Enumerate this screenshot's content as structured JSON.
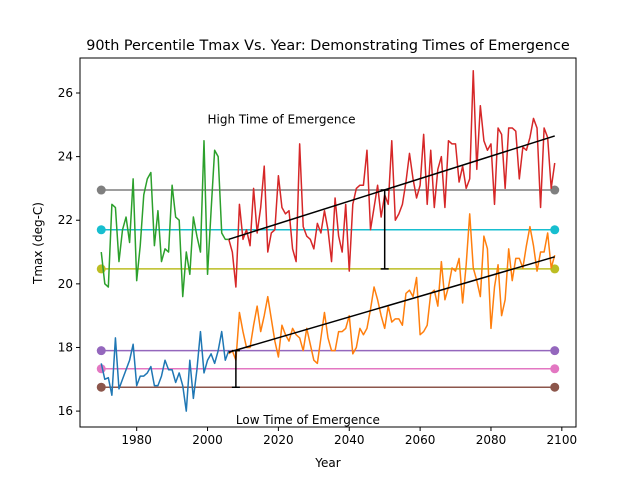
{
  "chart_data": {
    "type": "line",
    "title": "90th Percentile Tmax Vs. Year: Demonstrating Times of Emergence",
    "xlabel": "Year",
    "ylabel": "Tmax (deg-C)",
    "xlim": [
      1964,
      2104
    ],
    "ylim": [
      15.5,
      27.1
    ],
    "xticks": [
      1980,
      2000,
      2020,
      2040,
      2060,
      2080,
      2100
    ],
    "yticks": [
      16,
      18,
      20,
      22,
      24,
      26
    ],
    "grid": false,
    "annotations": [
      {
        "text": "High Time of Emergence",
        "x": 2000,
        "y": 25.2
      },
      {
        "text": "Low Time of Emergence",
        "x": 2008,
        "y": 15.75
      }
    ],
    "series": [
      {
        "color": "#1f77b4",
        "x": [
          1970,
          1971,
          1972,
          1973,
          1974,
          1975,
          1976,
          1977,
          1978,
          1979,
          1980,
          1981,
          1982,
          1983,
          1984,
          1985,
          1986,
          1987,
          1988,
          1989,
          1990,
          1991,
          1992,
          1993,
          1994,
          1995,
          1996,
          1997,
          1998,
          1999,
          2000,
          2001,
          2002,
          2003,
          2004,
          2005,
          2006
        ],
        "values": [
          17.5,
          17.0,
          17.05,
          16.5,
          18.3,
          16.7,
          17.0,
          17.3,
          17.6,
          18.1,
          16.8,
          17.1,
          17.1,
          17.2,
          17.4,
          16.8,
          16.8,
          17.1,
          17.6,
          17.3,
          17.3,
          16.9,
          17.2,
          16.8,
          16.0,
          17.6,
          16.4,
          17.3,
          18.5,
          17.2,
          17.6,
          17.8,
          17.5,
          17.9,
          18.5,
          17.6,
          17.9
        ]
      },
      {
        "color": "#2ca02c",
        "x": [
          1970,
          1971,
          1972,
          1973,
          1974,
          1975,
          1976,
          1977,
          1978,
          1979,
          1980,
          1981,
          1982,
          1983,
          1984,
          1985,
          1986,
          1987,
          1988,
          1989,
          1990,
          1991,
          1992,
          1993,
          1994,
          1995,
          1996,
          1997,
          1998,
          1999,
          2000,
          2001,
          2002,
          2003,
          2004,
          2005,
          2006
        ],
        "values": [
          21.0,
          20.0,
          19.9,
          22.5,
          22.4,
          20.7,
          21.7,
          22.1,
          21.3,
          23.3,
          20.1,
          21.2,
          22.8,
          23.3,
          23.5,
          21.2,
          22.3,
          20.7,
          21.1,
          21.0,
          23.1,
          22.1,
          22.0,
          19.6,
          21.0,
          20.3,
          22.1,
          21.5,
          21.0,
          24.5,
          20.3,
          22.3,
          24.2,
          24.0,
          21.6,
          21.4,
          21.4
        ]
      },
      {
        "color": "#ff7f0e",
        "x": [
          2006,
          2007,
          2008,
          2009,
          2010,
          2011,
          2012,
          2013,
          2014,
          2015,
          2016,
          2017,
          2018,
          2019,
          2020,
          2021,
          2022,
          2023,
          2024,
          2025,
          2026,
          2027,
          2028,
          2029,
          2030,
          2031,
          2032,
          2033,
          2034,
          2035,
          2036,
          2037,
          2038,
          2039,
          2040,
          2041,
          2042,
          2043,
          2044,
          2045,
          2046,
          2047,
          2048,
          2049,
          2050,
          2051,
          2052,
          2053,
          2054,
          2055,
          2056,
          2057,
          2058,
          2059,
          2060,
          2061,
          2062,
          2063,
          2064,
          2065,
          2066,
          2067,
          2068,
          2069,
          2070,
          2071,
          2072,
          2073,
          2074,
          2075,
          2076,
          2077,
          2078,
          2079,
          2080,
          2081,
          2082,
          2083,
          2084,
          2085,
          2086,
          2087,
          2088,
          2089,
          2090,
          2091,
          2092,
          2093,
          2094,
          2095,
          2096,
          2097,
          2098
        ],
        "values": [
          17.8,
          17.9,
          17.6,
          19.1,
          18.5,
          18.0,
          18.0,
          18.7,
          19.3,
          18.5,
          19.0,
          19.6,
          18.9,
          18.2,
          17.7,
          18.7,
          18.4,
          18.2,
          18.6,
          18.4,
          18.3,
          17.9,
          18.6,
          18.1,
          17.6,
          17.5,
          18.3,
          19.1,
          18.3,
          17.9,
          17.9,
          18.5,
          18.5,
          18.6,
          19.0,
          17.8,
          18.0,
          18.6,
          18.4,
          18.6,
          19.2,
          19.9,
          19.5,
          19.0,
          18.6,
          19.3,
          18.8,
          18.9,
          18.9,
          18.7,
          19.7,
          19.8,
          19.6,
          20.2,
          18.4,
          18.5,
          18.7,
          19.7,
          19.8,
          19.3,
          20.7,
          19.5,
          19.9,
          20.5,
          20.4,
          20.8,
          19.4,
          20.6,
          22.2,
          20.5,
          20.1,
          19.6,
          21.5,
          21.1,
          18.6,
          19.9,
          20.6,
          19.0,
          19.5,
          21.1,
          20.1,
          20.8,
          20.8,
          20.5,
          21.2,
          21.8,
          21.2,
          20.4,
          21.0,
          21.0,
          21.6,
          20.5,
          20.9
        ]
      },
      {
        "color": "#d62728",
        "x": [
          2006,
          2007,
          2008,
          2009,
          2010,
          2011,
          2012,
          2013,
          2014,
          2015,
          2016,
          2017,
          2018,
          2019,
          2020,
          2021,
          2022,
          2023,
          2024,
          2025,
          2026,
          2027,
          2028,
          2029,
          2030,
          2031,
          2032,
          2033,
          2034,
          2035,
          2036,
          2037,
          2038,
          2039,
          2040,
          2041,
          2042,
          2043,
          2044,
          2045,
          2046,
          2047,
          2048,
          2049,
          2050,
          2051,
          2052,
          2053,
          2054,
          2055,
          2056,
          2057,
          2058,
          2059,
          2060,
          2061,
          2062,
          2063,
          2064,
          2065,
          2066,
          2067,
          2068,
          2069,
          2070,
          2071,
          2072,
          2073,
          2074,
          2075,
          2076,
          2077,
          2078,
          2079,
          2080,
          2081,
          2082,
          2083,
          2084,
          2085,
          2086,
          2087,
          2088,
          2089,
          2090,
          2091,
          2092,
          2093,
          2094,
          2095,
          2096,
          2097,
          2098
        ],
        "values": [
          21.4,
          21.0,
          19.9,
          22.5,
          21.4,
          21.7,
          21.2,
          23.0,
          21.6,
          22.4,
          23.7,
          21.0,
          21.6,
          21.7,
          23.4,
          22.4,
          22.2,
          22.3,
          21.1,
          20.7,
          24.4,
          21.8,
          21.5,
          21.4,
          21.1,
          21.9,
          21.6,
          22.3,
          21.7,
          20.7,
          22.7,
          21.5,
          21.0,
          22.5,
          20.4,
          22.5,
          23.0,
          23.1,
          23.1,
          24.2,
          21.7,
          22.4,
          23.1,
          22.1,
          22.8,
          22.5,
          24.5,
          22.0,
          22.2,
          22.5,
          23.2,
          24.1,
          23.3,
          22.7,
          23.1,
          24.7,
          22.5,
          24.2,
          22.4,
          23.6,
          24.0,
          22.4,
          24.5,
          24.4,
          24.4,
          23.2,
          23.7,
          23.0,
          23.3,
          26.7,
          23.6,
          25.6,
          24.5,
          24.2,
          24.4,
          22.5,
          24.9,
          24.7,
          23.0,
          24.9,
          24.9,
          24.8,
          23.3,
          24.3,
          24.2,
          24.6,
          25.2,
          24.9,
          22.4,
          24.9,
          24.6,
          23.0,
          23.8
        ]
      }
    ],
    "thresholds": [
      {
        "color": "#7f7f7f",
        "y": 22.95,
        "x_start": 1970,
        "x_end": 2098
      },
      {
        "color": "#17becf",
        "y": 21.7,
        "x_start": 1970,
        "x_end": 2098
      },
      {
        "color": "#bcbd22",
        "y": 20.47,
        "x_start": 1970,
        "x_end": 2098
      },
      {
        "color": "#9467bd",
        "y": 17.9,
        "x_start": 1970,
        "x_end": 2098
      },
      {
        "color": "#e377c2",
        "y": 17.33,
        "x_start": 1970,
        "x_end": 2098
      },
      {
        "color": "#8c564b",
        "y": 16.75,
        "x_start": 1970,
        "x_end": 2098
      }
    ],
    "trend_lines": [
      {
        "color": "#000000",
        "x": [
          2006,
          2098
        ],
        "y": [
          21.4,
          24.65
        ]
      },
      {
        "color": "#000000",
        "x": [
          2006,
          2098
        ],
        "y": [
          17.85,
          20.85
        ]
      }
    ],
    "emergence_markers": [
      {
        "color": "#000000",
        "x": 2050,
        "y_low": 20.47,
        "y_high": 22.95
      },
      {
        "color": "#000000",
        "x": 2008,
        "y_low": 16.75,
        "y_high": 17.9
      }
    ]
  }
}
